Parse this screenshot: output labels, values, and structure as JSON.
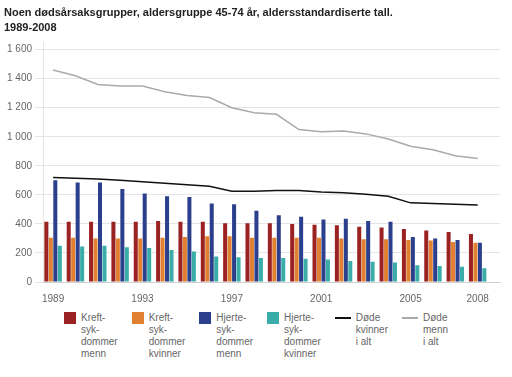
{
  "chart_data": {
    "type": "bar",
    "title": "Noen dødsårsaksgrupper, aldersgruppe 45-74 år, aldersstandardiserte tall.",
    "subtitle": "1989-2008",
    "x": [
      1989,
      1990,
      1991,
      1992,
      1993,
      1994,
      1995,
      1996,
      1997,
      1998,
      1999,
      2000,
      2001,
      2002,
      2003,
      2004,
      2005,
      2006,
      2007,
      2008
    ],
    "series": [
      {
        "name": "Kreft-\nsyk-\ndommer\nmenn",
        "type": "bar",
        "color": "#9B2222",
        "values": [
          415,
          415,
          415,
          415,
          415,
          420,
          415,
          415,
          405,
          405,
          405,
          400,
          395,
          390,
          380,
          375,
          365,
          355,
          345,
          330
        ]
      },
      {
        "name": "Kreft-\nsyk-\ndommer\nkvinner",
        "type": "bar",
        "color": "#E08030",
        "values": [
          305,
          305,
          300,
          300,
          300,
          305,
          310,
          315,
          315,
          305,
          305,
          305,
          305,
          300,
          295,
          295,
          290,
          285,
          275,
          270
        ]
      },
      {
        "name": "Hjerte-\nsyk-\ndommer\nmenn",
        "type": "bar",
        "color": "#2B3F8C",
        "values": [
          700,
          685,
          685,
          640,
          610,
          590,
          585,
          540,
          535,
          490,
          460,
          450,
          430,
          435,
          420,
          415,
          310,
          300,
          290,
          270
        ]
      },
      {
        "name": "Hjerte-\nsyk-\ndommer\nkvinner",
        "type": "bar",
        "color": "#3AADA8",
        "values": [
          250,
          245,
          250,
          240,
          235,
          220,
          210,
          175,
          170,
          165,
          165,
          160,
          155,
          145,
          140,
          135,
          115,
          110,
          105,
          95
        ]
      },
      {
        "name": "Døde\nkvinner\ni alt",
        "type": "line",
        "color": "#111111",
        "values": [
          720,
          715,
          710,
          700,
          690,
          680,
          670,
          660,
          625,
          625,
          630,
          630,
          620,
          615,
          605,
          590,
          545,
          540,
          535,
          530
        ]
      },
      {
        "name": "Døde\nmenn\ni alt",
        "type": "line",
        "color": "#AAAAAA",
        "values": [
          1460,
          1420,
          1360,
          1350,
          1350,
          1310,
          1285,
          1270,
          1200,
          1165,
          1155,
          1050,
          1035,
          1040,
          1020,
          985,
          935,
          910,
          870,
          850
        ]
      }
    ],
    "xlim": [
      1988.55,
      2009.0
    ],
    "xticks": [
      1989,
      1993,
      1997,
      2001,
      2005,
      2008
    ],
    "ylim": [
      0,
      1650
    ],
    "yticks": [
      0,
      200,
      400,
      600,
      {
        "value": 800,
        "label": "800"
      },
      {
        "value": 1000,
        "label": "1 000"
      },
      {
        "value": 1200,
        "label": "1 200"
      },
      {
        "value": 1400,
        "label": "1 400"
      },
      {
        "value": 1600,
        "label": "1 600"
      }
    ],
    "grid": "y",
    "legend": "bottom"
  }
}
